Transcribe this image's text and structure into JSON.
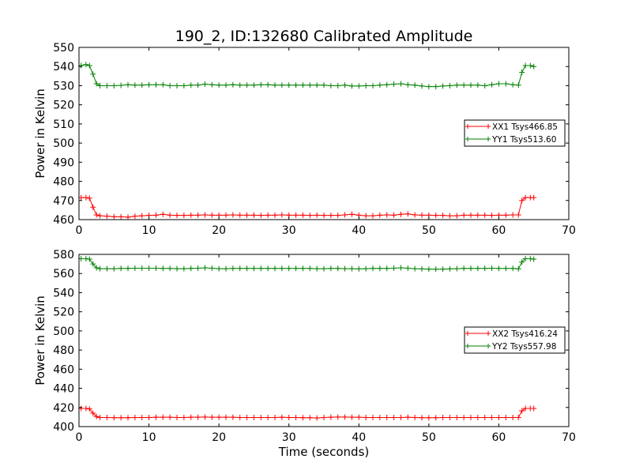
{
  "chart_data": [
    {
      "type": "line",
      "title": "190_2, ID:132680 Calibrated Amplitude",
      "xlabel": "",
      "ylabel": "Power in Kelvin",
      "xlim": [
        0,
        70
      ],
      "ylim": [
        460,
        550
      ],
      "xticks": [
        0,
        10,
        20,
        30,
        40,
        50,
        60,
        70
      ],
      "yticks": [
        460,
        470,
        480,
        490,
        500,
        510,
        520,
        530,
        540,
        550
      ],
      "legend_position": "center-right",
      "grid": false,
      "series": [
        {
          "name": "XX1 Tsys466.85",
          "color": "#ff0000",
          "marker": "+",
          "x": [
            0.3,
            1.0,
            1.5,
            2.0,
            2.5,
            3,
            4,
            5,
            6,
            7,
            8,
            9,
            10,
            11,
            12,
            13,
            14,
            15,
            16,
            17,
            18,
            19,
            20,
            21,
            22,
            23,
            24,
            25,
            26,
            27,
            28,
            29,
            30,
            31,
            32,
            33,
            34,
            35,
            36,
            37,
            38,
            39,
            40,
            41,
            42,
            43,
            44,
            45,
            46,
            47,
            48,
            49,
            50,
            51,
            52,
            53,
            54,
            55,
            56,
            57,
            58,
            59,
            60,
            61,
            62,
            62.8,
            63.3,
            63.8,
            64.5,
            65.0
          ],
          "y": [
            471.5,
            471.5,
            471.2,
            466.5,
            462.5,
            462.0,
            461.8,
            461.5,
            461.5,
            461.3,
            461.8,
            462.0,
            462.2,
            462.3,
            462.8,
            462.3,
            462.2,
            462.2,
            462.3,
            462.3,
            462.5,
            462.3,
            462.3,
            462.3,
            462.5,
            462.3,
            462.3,
            462.3,
            462.2,
            462.3,
            462.3,
            462.5,
            462.3,
            462.3,
            462.3,
            462.2,
            462.3,
            462.2,
            462.2,
            462.2,
            462.5,
            462.8,
            462.3,
            462.0,
            462.0,
            462.3,
            462.5,
            462.3,
            462.8,
            463.0,
            462.5,
            462.3,
            462.3,
            462.2,
            462.2,
            462.0,
            462.0,
            462.3,
            462.3,
            462.3,
            462.3,
            462.2,
            462.3,
            462.3,
            462.5,
            462.5,
            470.0,
            471.5,
            471.5,
            471.5
          ]
        },
        {
          "name": "YY1 Tsys513.60",
          "color": "#008000",
          "marker": "+",
          "x": [
            0.3,
            1.0,
            1.5,
            2.0,
            2.5,
            3,
            4,
            5,
            6,
            7,
            8,
            9,
            10,
            11,
            12,
            13,
            14,
            15,
            16,
            17,
            18,
            19,
            20,
            21,
            22,
            23,
            24,
            25,
            26,
            27,
            28,
            29,
            30,
            31,
            32,
            33,
            34,
            35,
            36,
            37,
            38,
            39,
            40,
            41,
            42,
            43,
            44,
            45,
            46,
            47,
            48,
            49,
            50,
            51,
            52,
            53,
            54,
            55,
            56,
            57,
            58,
            59,
            60,
            61,
            62,
            62.8,
            63.3,
            63.8,
            64.5,
            65.0
          ],
          "y": [
            540.5,
            541.0,
            540.5,
            536.0,
            531.0,
            530.0,
            530.0,
            530.0,
            530.2,
            530.5,
            530.3,
            530.3,
            530.5,
            530.5,
            530.5,
            530.0,
            530.0,
            530.0,
            530.3,
            530.3,
            530.8,
            530.5,
            530.3,
            530.3,
            530.5,
            530.3,
            530.3,
            530.3,
            530.5,
            530.5,
            530.3,
            530.3,
            530.3,
            530.3,
            530.3,
            530.3,
            530.3,
            530.3,
            530.0,
            530.0,
            530.3,
            529.8,
            529.8,
            530.0,
            530.0,
            530.3,
            530.5,
            530.8,
            531.0,
            530.5,
            530.3,
            529.8,
            529.5,
            529.5,
            529.8,
            530.0,
            530.3,
            530.3,
            530.3,
            530.3,
            530.0,
            530.5,
            531.0,
            531.0,
            530.5,
            530.3,
            537.0,
            540.5,
            540.5,
            540.0
          ]
        }
      ]
    },
    {
      "type": "line",
      "title": "",
      "xlabel": "Time (seconds)",
      "ylabel": "Power in Kelvin",
      "xlim": [
        0,
        70
      ],
      "ylim": [
        400,
        580
      ],
      "xticks": [
        0,
        10,
        20,
        30,
        40,
        50,
        60,
        70
      ],
      "yticks": [
        400,
        420,
        440,
        460,
        480,
        500,
        520,
        540,
        560,
        580
      ],
      "legend_position": "center-right",
      "grid": false,
      "series": [
        {
          "name": "XX2 Tsys416.24",
          "color": "#ff0000",
          "marker": "+",
          "x": [
            0.3,
            1.0,
            1.5,
            2.0,
            2.5,
            3,
            4,
            5,
            6,
            7,
            8,
            9,
            10,
            11,
            12,
            13,
            14,
            15,
            16,
            17,
            18,
            19,
            20,
            21,
            22,
            23,
            24,
            25,
            26,
            27,
            28,
            29,
            30,
            31,
            32,
            33,
            34,
            35,
            36,
            37,
            38,
            39,
            40,
            41,
            42,
            43,
            44,
            45,
            46,
            47,
            48,
            49,
            50,
            51,
            52,
            53,
            54,
            55,
            56,
            57,
            58,
            59,
            60,
            61,
            62,
            62.8,
            63.3,
            63.8,
            64.5,
            65.0
          ],
          "y": [
            419.0,
            419.0,
            418.5,
            414.0,
            410.5,
            409.5,
            409.5,
            409.3,
            409.3,
            409.3,
            409.5,
            409.5,
            409.5,
            409.8,
            409.8,
            409.8,
            409.5,
            409.5,
            409.8,
            409.8,
            410.0,
            409.8,
            409.8,
            409.8,
            409.8,
            409.5,
            409.5,
            409.5,
            409.5,
            409.5,
            409.5,
            409.8,
            409.5,
            409.5,
            409.3,
            409.3,
            409.0,
            409.5,
            409.8,
            410.0,
            410.0,
            409.8,
            409.8,
            409.5,
            409.5,
            409.5,
            409.5,
            409.5,
            409.5,
            409.8,
            409.5,
            409.3,
            409.3,
            409.3,
            409.5,
            409.5,
            409.5,
            409.5,
            409.5,
            409.5,
            409.5,
            409.5,
            409.5,
            409.5,
            409.5,
            409.5,
            416.5,
            419.0,
            419.0,
            419.0
          ]
        },
        {
          "name": "YY2 Tsys557.98",
          "color": "#008000",
          "marker": "+",
          "x": [
            0.3,
            1.0,
            1.5,
            2.0,
            2.5,
            3,
            4,
            5,
            6,
            7,
            8,
            9,
            10,
            11,
            12,
            13,
            14,
            15,
            16,
            17,
            18,
            19,
            20,
            21,
            22,
            23,
            24,
            25,
            26,
            27,
            28,
            29,
            30,
            31,
            32,
            33,
            34,
            35,
            36,
            37,
            38,
            39,
            40,
            41,
            42,
            43,
            44,
            45,
            46,
            47,
            48,
            49,
            50,
            51,
            52,
            53,
            54,
            55,
            56,
            57,
            58,
            59,
            60,
            61,
            62,
            62.8,
            63.3,
            63.8,
            64.5,
            65.0
          ],
          "y": [
            575.5,
            575.5,
            575.0,
            570.0,
            566.0,
            565.0,
            565.0,
            565.0,
            565.3,
            565.3,
            565.5,
            565.5,
            565.5,
            565.5,
            565.3,
            565.3,
            565.0,
            565.0,
            565.3,
            565.5,
            566.0,
            565.5,
            565.0,
            565.0,
            565.3,
            565.3,
            565.3,
            565.3,
            565.3,
            565.3,
            565.3,
            565.3,
            565.3,
            565.3,
            565.3,
            565.3,
            565.0,
            565.0,
            565.3,
            565.3,
            565.0,
            565.0,
            564.8,
            565.0,
            565.3,
            565.3,
            565.3,
            565.5,
            566.0,
            565.5,
            565.0,
            564.8,
            564.5,
            564.5,
            564.5,
            564.8,
            565.0,
            565.3,
            565.3,
            565.3,
            565.3,
            565.5,
            565.3,
            565.3,
            565.3,
            564.8,
            572.0,
            575.5,
            575.5,
            575.0
          ]
        }
      ]
    }
  ]
}
